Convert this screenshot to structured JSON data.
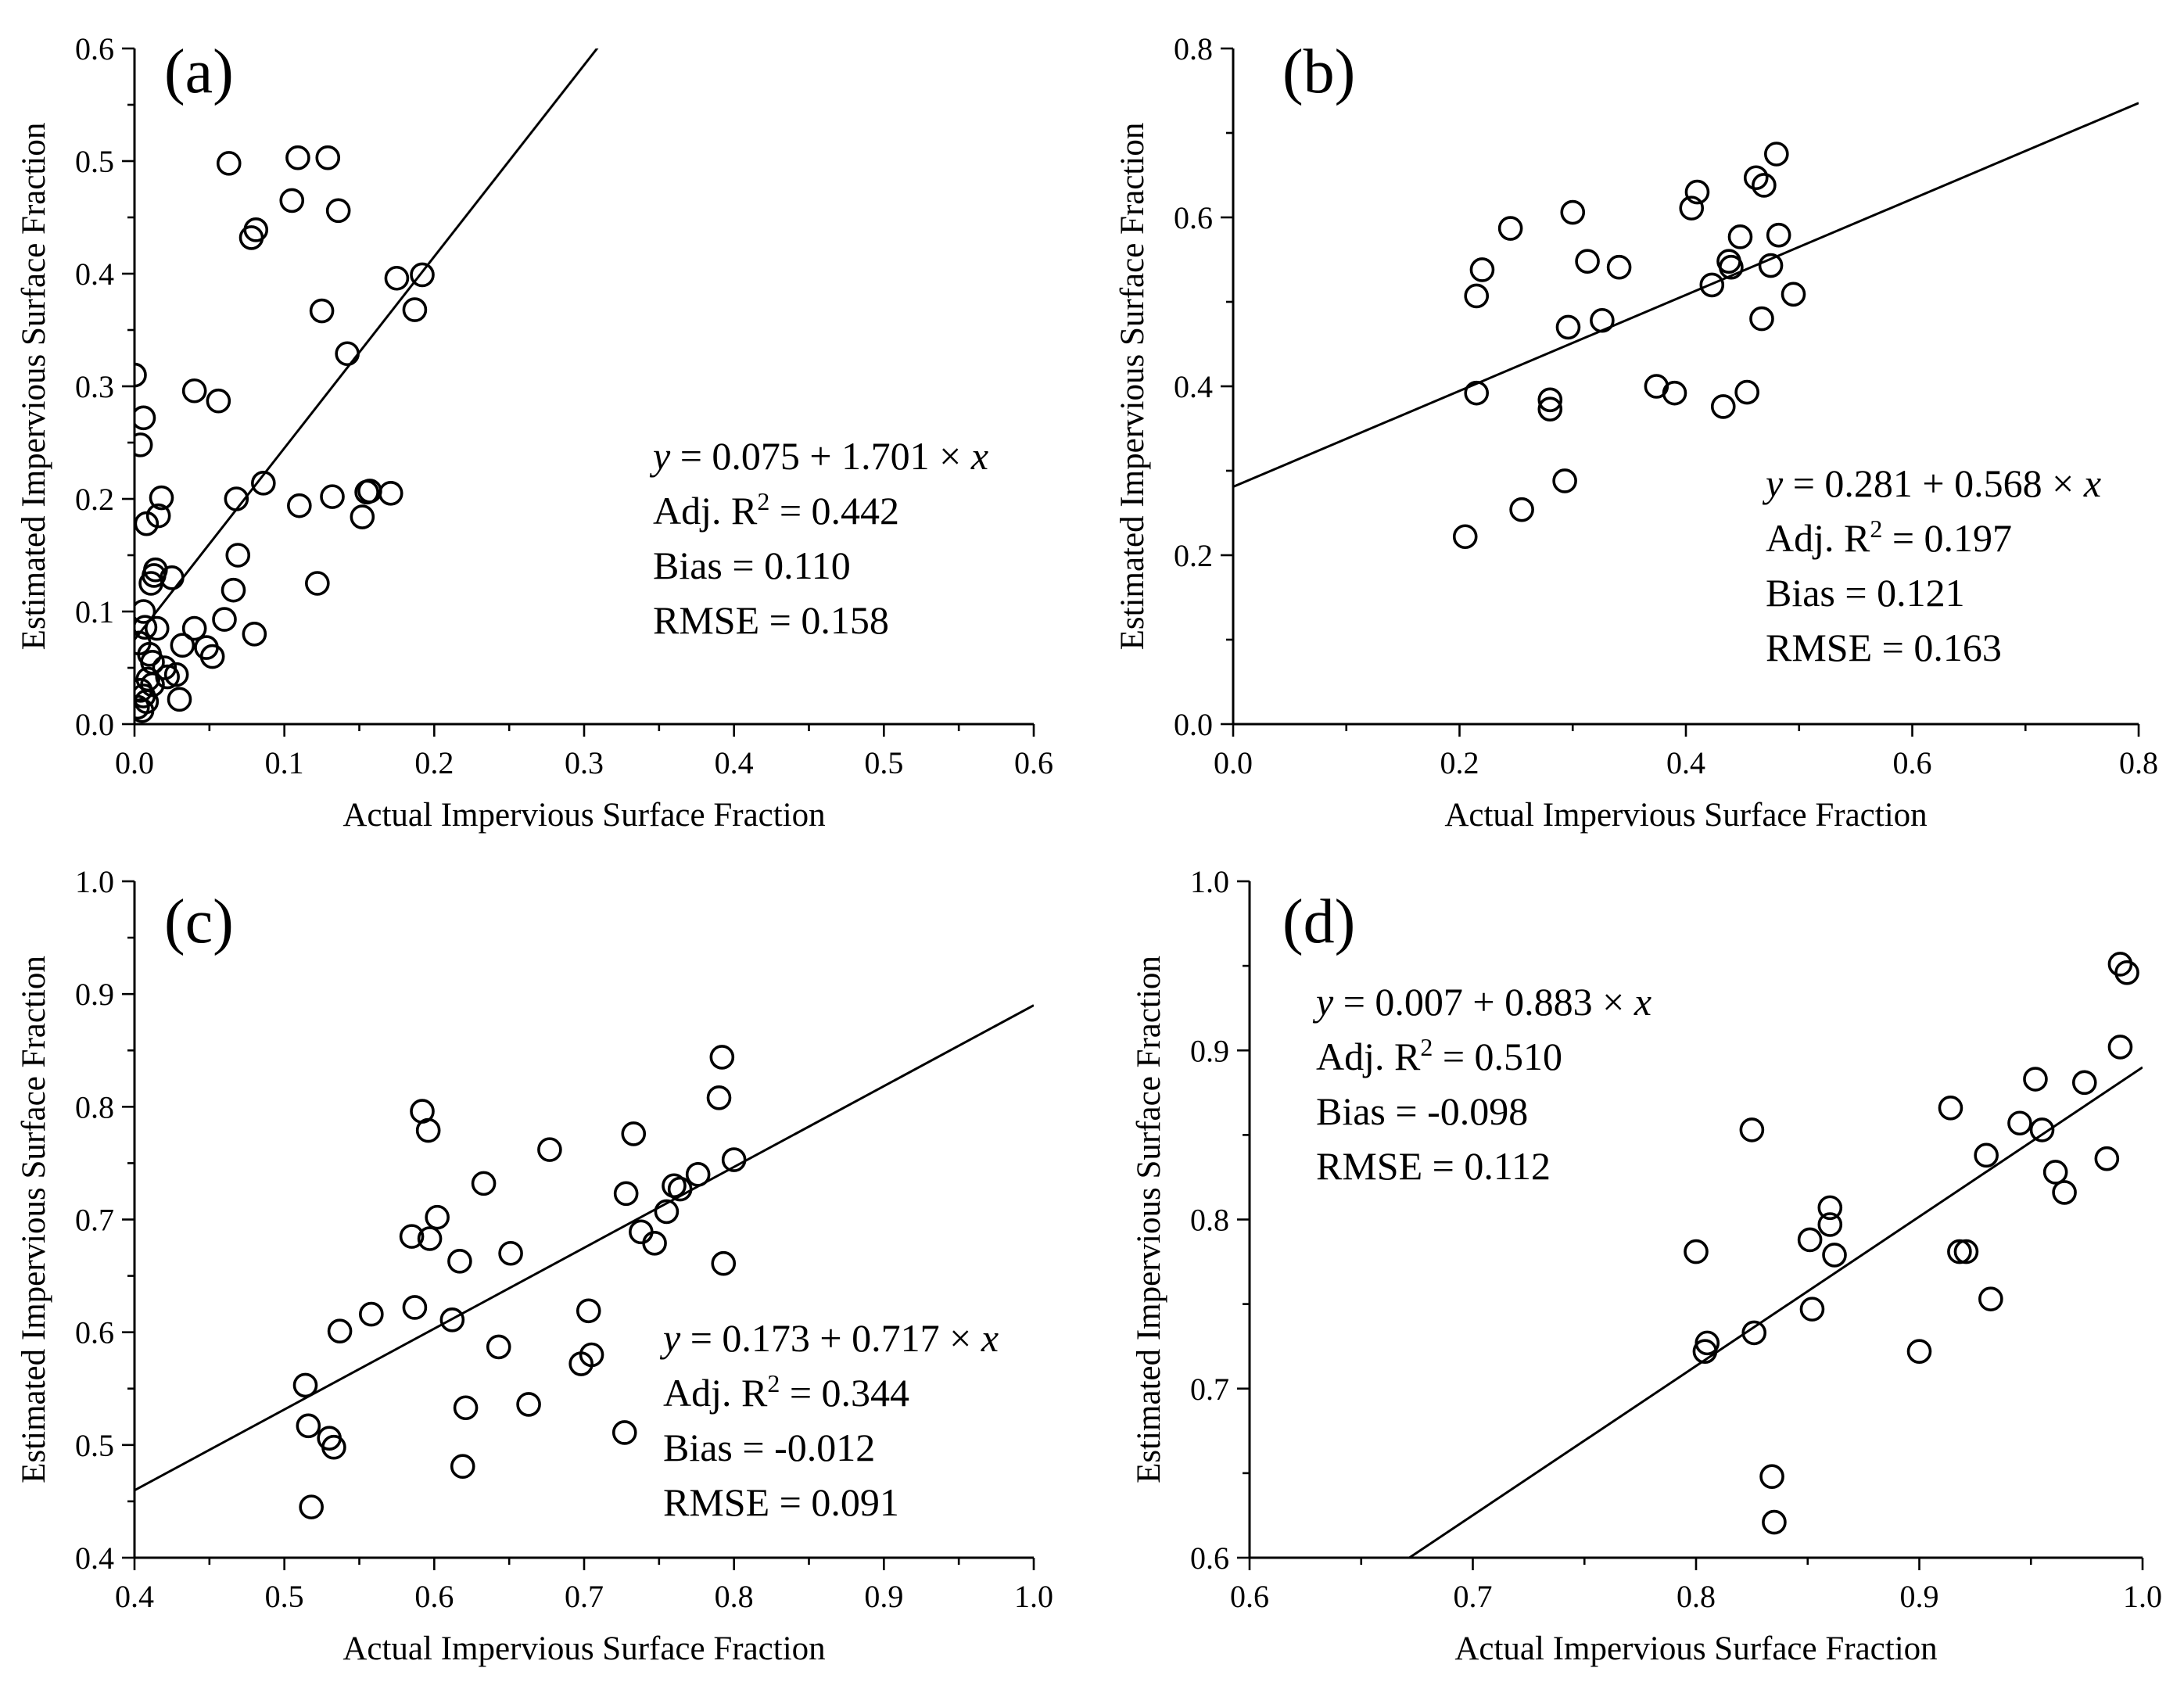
{
  "chart_data": [
    {
      "type": "scatter",
      "panel_label": "(a)",
      "xlabel": "Actual Impervious Surface Fraction",
      "ylabel": "Estimated Impervious Surface Fraction",
      "xlim": [
        0,
        0.6
      ],
      "ylim": [
        0,
        0.6
      ],
      "xticks": [
        "0.0",
        "0.1",
        "0.2",
        "0.3",
        "0.4",
        "0.5",
        "0.6"
      ],
      "yticks": [
        "0.0",
        "0.1",
        "0.2",
        "0.3",
        "0.4",
        "0.5",
        "0.6"
      ],
      "fit": {
        "intercept": 0.075,
        "slope": 1.701
      },
      "stats": {
        "equation": {
          "y": "y",
          "rest": " = 0.075 + 1.701 × ",
          "x": "x"
        },
        "r2": {
          "pre": "Adj. R",
          "sup": "2",
          "post": " = 0.442"
        },
        "bias": "Bias = 0.110",
        "rmse": "RMSE = 0.158"
      },
      "points": [
        [
          0.0,
          0.31
        ],
        [
          0.004,
          0.248
        ],
        [
          0.006,
          0.272
        ],
        [
          0.008,
          0.178
        ],
        [
          0.006,
          0.1
        ],
        [
          0.007,
          0.086
        ],
        [
          0.003,
          0.072
        ],
        [
          0.01,
          0.062
        ],
        [
          0.012,
          0.055
        ],
        [
          0.011,
          0.125
        ],
        [
          0.013,
          0.132
        ],
        [
          0.014,
          0.137
        ],
        [
          0.016,
          0.185
        ],
        [
          0.018,
          0.201
        ],
        [
          0.015,
          0.085
        ],
        [
          0.02,
          0.05
        ],
        [
          0.022,
          0.042
        ],
        [
          0.025,
          0.13
        ],
        [
          0.028,
          0.044
        ],
        [
          0.03,
          0.022
        ],
        [
          0.004,
          0.03
        ],
        [
          0.006,
          0.025
        ],
        [
          0.008,
          0.02
        ],
        [
          0.002,
          0.015
        ],
        [
          0.009,
          0.04
        ],
        [
          0.012,
          0.035
        ],
        [
          0.005,
          0.012
        ],
        [
          0.032,
          0.07
        ],
        [
          0.04,
          0.296
        ],
        [
          0.04,
          0.085
        ],
        [
          0.048,
          0.068
        ],
        [
          0.052,
          0.06
        ],
        [
          0.056,
          0.287
        ],
        [
          0.06,
          0.093
        ],
        [
          0.063,
          0.498
        ],
        [
          0.066,
          0.119
        ],
        [
          0.068,
          0.2
        ],
        [
          0.069,
          0.15
        ],
        [
          0.078,
          0.432
        ],
        [
          0.081,
          0.439
        ],
        [
          0.08,
          0.08
        ],
        [
          0.086,
          0.214
        ],
        [
          0.105,
          0.465
        ],
        [
          0.109,
          0.503
        ],
        [
          0.11,
          0.194
        ],
        [
          0.122,
          0.125
        ],
        [
          0.125,
          0.367
        ],
        [
          0.129,
          0.503
        ],
        [
          0.132,
          0.202
        ],
        [
          0.136,
          0.456
        ],
        [
          0.142,
          0.329
        ],
        [
          0.152,
          0.184
        ],
        [
          0.155,
          0.206
        ],
        [
          0.157,
          0.207
        ],
        [
          0.171,
          0.205
        ],
        [
          0.175,
          0.396
        ],
        [
          0.187,
          0.368
        ],
        [
          0.192,
          0.399
        ]
      ]
    },
    {
      "type": "scatter",
      "panel_label": "(b)",
      "xlabel": "Actual Impervious Surface Fraction",
      "ylabel": "Estimated Impervious Surface Fraction",
      "xlim": [
        0,
        0.8
      ],
      "ylim": [
        0,
        0.8
      ],
      "xticks": [
        "0.0",
        "0.2",
        "0.4",
        "0.6",
        "0.8"
      ],
      "yticks": [
        "0.0",
        "0.2",
        "0.4",
        "0.6",
        "0.8"
      ],
      "fit": {
        "intercept": 0.281,
        "slope": 0.568
      },
      "stats": {
        "equation": {
          "y": "y",
          "rest": " = 0.281 + 0.568 × ",
          "x": "x"
        },
        "r2": {
          "pre": "Adj. R",
          "sup": "2",
          "post": " = 0.197"
        },
        "bias": "Bias = 0.121",
        "rmse": "RMSE = 0.163"
      },
      "points": [
        [
          0.205,
          0.222
        ],
        [
          0.215,
          0.392
        ],
        [
          0.215,
          0.507
        ],
        [
          0.22,
          0.538
        ],
        [
          0.245,
          0.587
        ],
        [
          0.255,
          0.254
        ],
        [
          0.28,
          0.384
        ],
        [
          0.28,
          0.373
        ],
        [
          0.293,
          0.288
        ],
        [
          0.296,
          0.47
        ],
        [
          0.3,
          0.606
        ],
        [
          0.313,
          0.548
        ],
        [
          0.326,
          0.478
        ],
        [
          0.341,
          0.541
        ],
        [
          0.374,
          0.4
        ],
        [
          0.39,
          0.392
        ],
        [
          0.405,
          0.611
        ],
        [
          0.41,
          0.63
        ],
        [
          0.423,
          0.52
        ],
        [
          0.433,
          0.376
        ],
        [
          0.438,
          0.548
        ],
        [
          0.44,
          0.541
        ],
        [
          0.448,
          0.577
        ],
        [
          0.454,
          0.393
        ],
        [
          0.462,
          0.647
        ],
        [
          0.467,
          0.48
        ],
        [
          0.469,
          0.638
        ],
        [
          0.475,
          0.543
        ],
        [
          0.48,
          0.675
        ],
        [
          0.482,
          0.579
        ],
        [
          0.495,
          0.509
        ]
      ]
    },
    {
      "type": "scatter",
      "panel_label": "(c)",
      "xlabel": "Actual Impervious Surface Fraction",
      "ylabel": "Estimated Impervious Surface Fraction",
      "xlim": [
        0.4,
        1.0
      ],
      "ylim": [
        0.4,
        1.0
      ],
      "xticks": [
        "0.4",
        "0.5",
        "0.6",
        "0.7",
        "0.8",
        "0.9",
        "1.0"
      ],
      "yticks": [
        "0.4",
        "0.5",
        "0.6",
        "0.7",
        "0.8",
        "0.9",
        "1.0"
      ],
      "fit": {
        "intercept": 0.173,
        "slope": 0.717
      },
      "stats": {
        "equation": {
          "y": "y",
          "rest": " = 0.173 + 0.717 × ",
          "x": "x"
        },
        "r2": {
          "pre": "Adj. R",
          "sup": "2",
          "post": " = 0.344"
        },
        "bias": "Bias = -0.012",
        "rmse": "RMSE = 0.091"
      },
      "points": [
        [
          0.514,
          0.553
        ],
        [
          0.516,
          0.517
        ],
        [
          0.518,
          0.445
        ],
        [
          0.53,
          0.506
        ],
        [
          0.533,
          0.498
        ],
        [
          0.537,
          0.601
        ],
        [
          0.558,
          0.616
        ],
        [
          0.585,
          0.685
        ],
        [
          0.587,
          0.622
        ],
        [
          0.592,
          0.796
        ],
        [
          0.596,
          0.779
        ],
        [
          0.597,
          0.683
        ],
        [
          0.602,
          0.702
        ],
        [
          0.612,
          0.611
        ],
        [
          0.617,
          0.663
        ],
        [
          0.619,
          0.481
        ],
        [
          0.621,
          0.533
        ],
        [
          0.633,
          0.732
        ],
        [
          0.643,
          0.587
        ],
        [
          0.651,
          0.67
        ],
        [
          0.663,
          0.536
        ],
        [
          0.677,
          0.762
        ],
        [
          0.698,
          0.572
        ],
        [
          0.703,
          0.619
        ],
        [
          0.705,
          0.58
        ],
        [
          0.727,
          0.511
        ],
        [
          0.728,
          0.723
        ],
        [
          0.733,
          0.776
        ],
        [
          0.738,
          0.689
        ],
        [
          0.747,
          0.679
        ],
        [
          0.755,
          0.707
        ],
        [
          0.76,
          0.73
        ],
        [
          0.764,
          0.727
        ],
        [
          0.776,
          0.74
        ],
        [
          0.79,
          0.808
        ],
        [
          0.792,
          0.844
        ],
        [
          0.793,
          0.661
        ],
        [
          0.8,
          0.753
        ]
      ]
    },
    {
      "type": "scatter",
      "panel_label": "(d)",
      "xlabel": "Actual Impervious Surface Fraction",
      "ylabel": "Estimated Impervious Surface Fraction",
      "xlim": [
        0.6,
        1.0
      ],
      "ylim": [
        0.6,
        1.0
      ],
      "xticks": [
        "0.6",
        "0.7",
        "0.8",
        "0.9",
        "1.0"
      ],
      "yticks": [
        "0.6",
        "0.7",
        "0.8",
        "0.9",
        "1.0"
      ],
      "fit": {
        "intercept": 0.007,
        "slope": 0.883
      },
      "stats": {
        "equation": {
          "y": "y",
          "rest": " = 0.007 + 0.883 × ",
          "x": "x"
        },
        "r2": {
          "pre": "Adj. R",
          "sup": "2",
          "post": " = 0.510"
        },
        "bias": "Bias = -0.098",
        "rmse": "RMSE = 0.112"
      },
      "points": [
        [
          0.8,
          0.781
        ],
        [
          0.804,
          0.722
        ],
        [
          0.805,
          0.727
        ],
        [
          0.825,
          0.853
        ],
        [
          0.826,
          0.733
        ],
        [
          0.834,
          0.648
        ],
        [
          0.835,
          0.621
        ],
        [
          0.851,
          0.788
        ],
        [
          0.852,
          0.747
        ],
        [
          0.86,
          0.807
        ],
        [
          0.86,
          0.797
        ],
        [
          0.862,
          0.779
        ],
        [
          0.9,
          0.722
        ],
        [
          0.914,
          0.866
        ],
        [
          0.918,
          0.781
        ],
        [
          0.921,
          0.781
        ],
        [
          0.93,
          0.838
        ],
        [
          0.932,
          0.753
        ],
        [
          0.945,
          0.857
        ],
        [
          0.952,
          0.883
        ],
        [
          0.955,
          0.853
        ],
        [
          0.961,
          0.828
        ],
        [
          0.965,
          0.816
        ],
        [
          0.974,
          0.881
        ],
        [
          0.984,
          0.836
        ],
        [
          0.99,
          0.902
        ],
        [
          0.99,
          0.951
        ],
        [
          0.993,
          0.946
        ]
      ]
    }
  ]
}
